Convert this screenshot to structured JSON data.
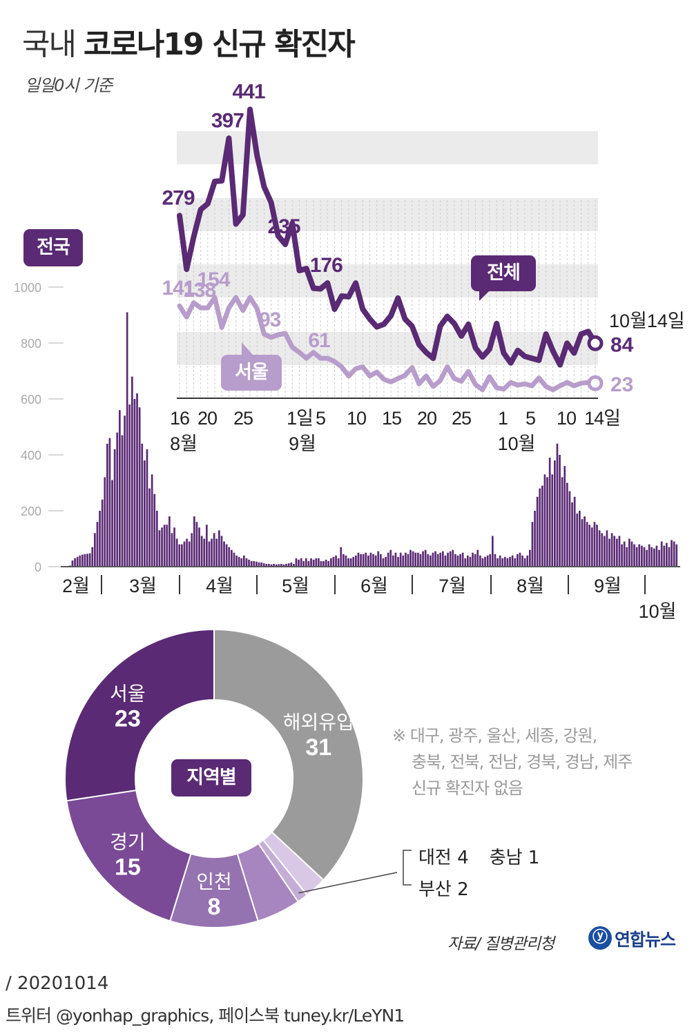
{
  "header": {
    "title_light": "국내",
    "title_bold": "코로나19 신규 확진자",
    "subtitle": "일일0시 기준"
  },
  "tags": {
    "national": "전국",
    "total": "전체",
    "seoul": "서울",
    "region": "지역별"
  },
  "colors": {
    "dark_purple": "#5a2a74",
    "light_purple": "#b79dcb",
    "bar": "#5a2a74",
    "grey_slice": "#9b9b9b",
    "band": "#ebebeb"
  },
  "chart_data": [
    {
      "type": "bar",
      "title": "전국",
      "ylim": [
        0,
        1000
      ],
      "yticks": [
        "0",
        "200",
        "400",
        "600",
        "800",
        "1000"
      ],
      "month_labels": [
        "2월",
        "3월",
        "4월",
        "5월",
        "6월",
        "7월",
        "8월",
        "9월",
        "10월"
      ],
      "month_values": [
        4,
        22,
        30,
        35,
        40,
        43,
        45,
        46,
        48,
        70,
        120,
        160,
        200,
        240,
        320,
        440,
        460,
        310,
        420,
        480,
        560,
        470,
        540,
        910,
        580,
        680,
        600,
        620,
        570,
        440,
        380,
        420,
        280,
        330,
        260,
        200,
        130,
        140,
        150,
        150,
        180,
        120,
        140,
        100,
        80,
        80,
        90,
        100,
        90,
        120,
        180,
        160,
        140,
        110,
        100,
        150,
        90,
        100,
        120,
        100,
        130,
        110,
        90,
        80,
        70,
        60,
        50,
        40,
        35,
        30,
        40,
        30,
        25,
        20,
        20,
        18,
        15,
        15,
        12,
        10,
        10,
        8,
        10,
        8,
        9,
        10,
        8,
        10,
        12,
        15,
        10,
        30,
        25,
        30,
        20,
        30,
        20,
        30,
        25,
        30,
        30,
        20,
        20,
        25,
        20,
        30,
        35,
        40,
        30,
        70,
        45,
        40,
        30,
        30,
        35,
        40,
        50,
        45,
        45,
        50,
        40,
        50,
        45,
        40,
        55,
        45,
        30,
        35,
        50,
        60,
        40,
        50,
        35,
        50,
        40,
        50,
        45,
        60,
        55,
        50,
        50,
        45,
        55,
        60,
        45,
        40,
        50,
        55,
        45,
        50,
        55,
        40,
        50,
        55,
        60,
        45,
        40,
        45,
        50,
        30,
        40,
        35,
        50,
        45,
        60,
        40,
        30,
        35,
        40,
        45,
        110,
        45,
        30,
        40,
        30,
        35,
        30,
        35,
        40,
        30,
        45,
        50,
        40,
        30,
        40,
        60,
        160,
        200,
        250,
        280,
        290,
        330,
        320,
        390,
        330,
        380,
        440,
        400,
        320,
        360,
        300,
        270,
        230,
        250,
        190,
        200,
        170,
        180,
        160,
        150,
        140,
        160,
        150,
        130,
        120,
        110,
        130,
        100,
        120,
        110,
        100,
        110,
        80,
        90,
        70,
        100,
        90,
        80,
        70,
        80,
        75,
        70,
        60,
        80,
        70,
        65,
        75,
        60,
        90,
        75,
        85,
        70,
        95,
        90,
        80
      ],
      "note": "daily national new confirmed cases, Feb to Oct 14 (values estimated from bar heights)"
    },
    {
      "type": "line",
      "x_tick_labels": [
        "16",
        "20",
        "25",
        "1일",
        "5",
        "10",
        "15",
        "20",
        "25",
        "1",
        "5",
        "10",
        "14일"
      ],
      "x_month_labels": [
        "8월",
        "9월",
        "10월"
      ],
      "series": [
        {
          "name": "전체",
          "values": [
            279,
            197,
            246,
            288,
            297,
            331,
            332,
            397,
            266,
            280,
            441,
            371,
            323,
            299,
            248,
            235,
            267,
            195,
            198,
            168,
            167,
            176,
            136,
            156,
            155,
            176,
            136,
            121,
            109,
            113,
            126,
            153,
            121,
            110,
            82,
            70,
            61,
            110,
            125,
            114,
            95,
            113,
            77,
            63,
            75,
            114,
            69,
            54,
            73,
            64,
            61,
            58,
            98,
            72,
            51,
            84,
            69,
            98,
            102,
            84
          ],
          "labels": {
            "0": "279",
            "7": "397",
            "10": "441",
            "15": "235",
            "21": "176",
            "59": "84"
          }
        },
        {
          "name": "서울",
          "values": [
            141,
            124,
            146,
            138,
            138,
            154,
            108,
            138,
            154,
            134,
            154,
            137,
            98,
            93,
            97,
            99,
            78,
            70,
            61,
            70,
            61,
            61,
            56,
            48,
            34,
            45,
            48,
            34,
            40,
            29,
            25,
            30,
            35,
            47,
            22,
            34,
            18,
            27,
            48,
            30,
            26,
            41,
            21,
            13,
            33,
            16,
            14,
            24,
            20,
            22,
            19,
            31,
            18,
            13,
            19,
            24,
            19,
            23,
            24,
            23
          ],
          "labels": {
            "0": "141",
            "3": "138",
            "5": "154",
            "13": "93",
            "20": "61",
            "59": "23"
          }
        }
      ],
      "end_date_label": "10월14일"
    },
    {
      "type": "pie",
      "title": "지역별",
      "slices": [
        {
          "name": "해외유입",
          "value": 31,
          "color": "#9b9b9b"
        },
        {
          "name": "부산",
          "value": 2,
          "color": "#d8c8e6"
        },
        {
          "name": "충남",
          "value": 1,
          "color": "#c4add6"
        },
        {
          "name": "대전",
          "value": 4,
          "color": "#a785bf"
        },
        {
          "name": "인천",
          "value": 8,
          "color": "#9572b0"
        },
        {
          "name": "경기",
          "value": 15,
          "color": "#7a4a96"
        },
        {
          "name": "서울",
          "value": 23,
          "color": "#5a2a74"
        }
      ],
      "minor_labels": [
        "대전 4",
        "충남 1",
        "부산 2"
      ]
    }
  ],
  "note_lines": [
    "※ 대구, 광주, 울산, 세종, 강원,",
    "충북, 전북, 전남, 경북, 경남, 제주",
    "신규 확진자 없음"
  ],
  "source": "자료/ 질병관리청",
  "logo_text": "연합뉴스",
  "footer": {
    "date": "/ 20201014",
    "credit": "트위터 @yonhap_graphics, 페이스북 tuney.kr/LeYN1"
  }
}
